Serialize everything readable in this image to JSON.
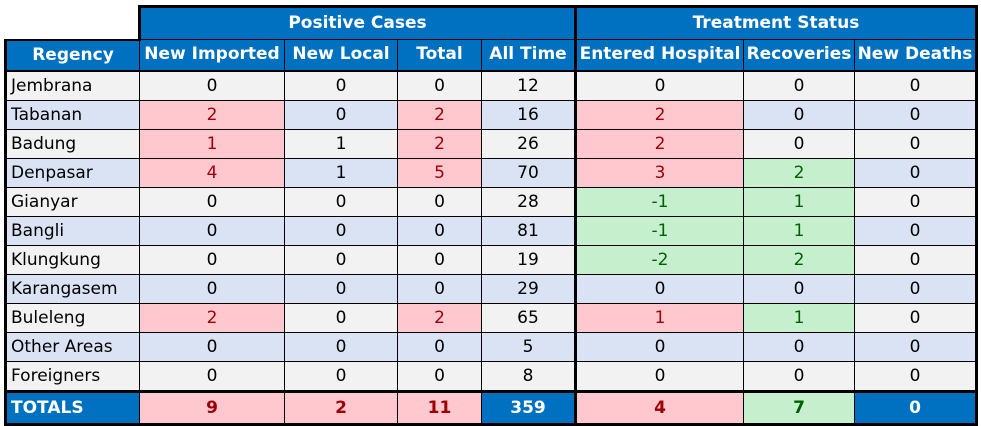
{
  "header": {
    "groups": {
      "positive": "Positive Cases",
      "treatment": "Treatment Status"
    },
    "columns": [
      "Regency",
      "New Imported",
      "New Local",
      "Total",
      "All Time",
      "Entered Hospital",
      "Recoveries",
      "New Deaths"
    ]
  },
  "rows": [
    {
      "name": "Jembrana",
      "values": [
        0,
        0,
        0,
        12,
        0,
        0,
        0
      ]
    },
    {
      "name": "Tabanan",
      "values": [
        2,
        0,
        2,
        16,
        2,
        0,
        0
      ]
    },
    {
      "name": "Badung",
      "values": [
        1,
        1,
        2,
        26,
        2,
        0,
        0
      ]
    },
    {
      "name": "Denpasar",
      "values": [
        4,
        1,
        5,
        70,
        3,
        2,
        0
      ]
    },
    {
      "name": "Gianyar",
      "values": [
        0,
        0,
        0,
        28,
        -1,
        1,
        0
      ]
    },
    {
      "name": "Bangli",
      "values": [
        0,
        0,
        0,
        81,
        -1,
        1,
        0
      ]
    },
    {
      "name": "Klungkung",
      "values": [
        0,
        0,
        0,
        19,
        -2,
        2,
        0
      ]
    },
    {
      "name": "Karangasem",
      "values": [
        0,
        0,
        0,
        29,
        0,
        0,
        0
      ]
    },
    {
      "name": "Buleleng",
      "values": [
        2,
        0,
        2,
        65,
        1,
        1,
        0
      ]
    },
    {
      "name": "Other Areas",
      "values": [
        0,
        0,
        0,
        5,
        0,
        0,
        0
      ]
    },
    {
      "name": "Foreigners",
      "values": [
        0,
        0,
        0,
        8,
        0,
        0,
        0
      ]
    }
  ],
  "totals": {
    "label": "TOTALS",
    "values": [
      9,
      2,
      11,
      359,
      4,
      7,
      0
    ]
  },
  "colors": {
    "header_blue": "#0070c0",
    "positive_fill": "#ffc7ce",
    "positive_text": "#9c0006",
    "negative_fill": "#c6efce",
    "negative_text": "#006100",
    "row_shade": "#dae3f3",
    "row_plain": "#f2f2f2"
  }
}
